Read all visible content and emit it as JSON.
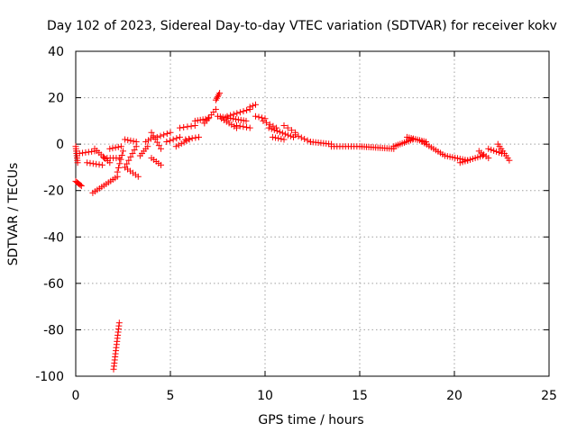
{
  "chart_data": {
    "type": "scatter",
    "title": "Day 102 of 2023, Sidereal Day-to-day VTEC variation (SDTVAR) for receiver kokv",
    "xlabel": "GPS time / hours",
    "ylabel": "SDTVAR / TECUs",
    "xlim": [
      0,
      25
    ],
    "ylim": [
      -100,
      40
    ],
    "xticks": [
      "0",
      "5",
      "10",
      "15",
      "20",
      "25"
    ],
    "yticks": [
      "-100",
      "-80",
      "-60",
      "-40",
      "-20",
      "0",
      "20",
      "40"
    ],
    "grid": true,
    "marker": "+",
    "color": "#ff0000",
    "segments": [
      {
        "from": [
          0.0,
          -1.0
        ],
        "to": [
          0.1,
          -8.0
        ],
        "n": 8
      },
      {
        "from": [
          0.0,
          -16.0
        ],
        "to": [
          0.3,
          -18.0
        ],
        "n": 6
      },
      {
        "from": [
          0.2,
          -4.0
        ],
        "to": [
          1.0,
          -3.0
        ],
        "n": 6
      },
      {
        "from": [
          0.6,
          -8.0
        ],
        "to": [
          1.4,
          -9.0
        ],
        "n": 6
      },
      {
        "from": [
          0.9,
          -21.0
        ],
        "to": [
          2.2,
          -14.0
        ],
        "n": 12
      },
      {
        "from": [
          1.0,
          -2.0
        ],
        "to": [
          1.8,
          -8.0
        ],
        "n": 8
      },
      {
        "from": [
          1.5,
          -6.0
        ],
        "to": [
          2.3,
          -6.0
        ],
        "n": 6
      },
      {
        "from": [
          1.8,
          -2.0
        ],
        "to": [
          2.4,
          -1.0
        ],
        "n": 5
      },
      {
        "from": [
          2.0,
          -97.0
        ],
        "to": [
          2.3,
          -77.0
        ],
        "n": 16
      },
      {
        "from": [
          2.2,
          -12.0
        ],
        "to": [
          2.5,
          -3.0
        ],
        "n": 6
      },
      {
        "from": [
          2.6,
          -10.0
        ],
        "to": [
          3.2,
          -1.0
        ],
        "n": 7
      },
      {
        "from": [
          2.6,
          -10.0
        ],
        "to": [
          3.3,
          -14.0
        ],
        "n": 6
      },
      {
        "from": [
          2.6,
          2.0
        ],
        "to": [
          3.2,
          1.0
        ],
        "n": 5
      },
      {
        "from": [
          3.4,
          -5.0
        ],
        "to": [
          3.8,
          -1.0
        ],
        "n": 5
      },
      {
        "from": [
          3.7,
          1.0
        ],
        "to": [
          4.1,
          3.0
        ],
        "n": 4
      },
      {
        "from": [
          4.0,
          -6.0
        ],
        "to": [
          4.5,
          -9.0
        ],
        "n": 5
      },
      {
        "from": [
          4.0,
          5.0
        ],
        "to": [
          4.5,
          -2.0
        ],
        "n": 6
      },
      {
        "from": [
          4.3,
          3.0
        ],
        "to": [
          5.0,
          5.0
        ],
        "n": 5
      },
      {
        "from": [
          4.8,
          1.0
        ],
        "to": [
          5.5,
          3.0
        ],
        "n": 5
      },
      {
        "from": [
          5.3,
          -1.0
        ],
        "to": [
          6.0,
          2.0
        ],
        "n": 6
      },
      {
        "from": [
          5.5,
          7.0
        ],
        "to": [
          6.3,
          8.0
        ],
        "n": 5
      },
      {
        "from": [
          5.8,
          2.0
        ],
        "to": [
          6.5,
          3.0
        ],
        "n": 5
      },
      {
        "from": [
          6.3,
          10.0
        ],
        "to": [
          7.0,
          11.0
        ],
        "n": 6
      },
      {
        "from": [
          6.8,
          9.0
        ],
        "to": [
          7.4,
          15.0
        ],
        "n": 6
      },
      {
        "from": [
          7.4,
          19.0
        ],
        "to": [
          7.6,
          22.0
        ],
        "n": 5
      },
      {
        "from": [
          7.5,
          12.0
        ],
        "to": [
          9.0,
          10.0
        ],
        "n": 12
      },
      {
        "from": [
          7.7,
          11.0
        ],
        "to": [
          8.5,
          7.0
        ],
        "n": 7
      },
      {
        "from": [
          8.0,
          12.0
        ],
        "to": [
          9.2,
          15.0
        ],
        "n": 8
      },
      {
        "from": [
          8.5,
          8.0
        ],
        "to": [
          9.2,
          7.0
        ],
        "n": 5
      },
      {
        "from": [
          9.2,
          16.0
        ],
        "to": [
          9.5,
          17.0
        ],
        "n": 3
      },
      {
        "from": [
          9.5,
          12.0
        ],
        "to": [
          10.0,
          11.0
        ],
        "n": 4
      },
      {
        "from": [
          9.9,
          10.0
        ],
        "to": [
          10.6,
          7.0
        ],
        "n": 5
      },
      {
        "from": [
          10.2,
          7.0
        ],
        "to": [
          11.5,
          3.0
        ],
        "n": 10
      },
      {
        "from": [
          10.4,
          3.0
        ],
        "to": [
          11.0,
          2.0
        ],
        "n": 5
      },
      {
        "from": [
          11.0,
          8.0
        ],
        "to": [
          11.6,
          5.0
        ],
        "n": 4
      },
      {
        "from": [
          11.6,
          4.0
        ],
        "to": [
          12.4,
          1.0
        ],
        "n": 6
      },
      {
        "from": [
          12.4,
          1.0
        ],
        "to": [
          13.5,
          0.0
        ],
        "n": 9
      },
      {
        "from": [
          13.5,
          -1.0
        ],
        "to": [
          15.0,
          -1.0
        ],
        "n": 11
      },
      {
        "from": [
          15.0,
          -1.0
        ],
        "to": [
          16.8,
          -2.0
        ],
        "n": 16
      },
      {
        "from": [
          16.8,
          -1.0
        ],
        "to": [
          17.8,
          2.0
        ],
        "n": 10
      },
      {
        "from": [
          17.5,
          3.0
        ],
        "to": [
          18.5,
          1.0
        ],
        "n": 10
      },
      {
        "from": [
          18.3,
          1.0
        ],
        "to": [
          19.5,
          -5.0
        ],
        "n": 11
      },
      {
        "from": [
          19.5,
          -5.0
        ],
        "to": [
          20.7,
          -7.0
        ],
        "n": 10
      },
      {
        "from": [
          20.3,
          -8.0
        ],
        "to": [
          21.5,
          -5.0
        ],
        "n": 10
      },
      {
        "from": [
          21.3,
          -3.0
        ],
        "to": [
          21.8,
          -6.0
        ],
        "n": 5
      },
      {
        "from": [
          21.8,
          -2.0
        ],
        "to": [
          22.5,
          -4.0
        ],
        "n": 6
      },
      {
        "from": [
          22.3,
          0.0
        ],
        "to": [
          22.9,
          -7.0
        ],
        "n": 8
      }
    ]
  }
}
